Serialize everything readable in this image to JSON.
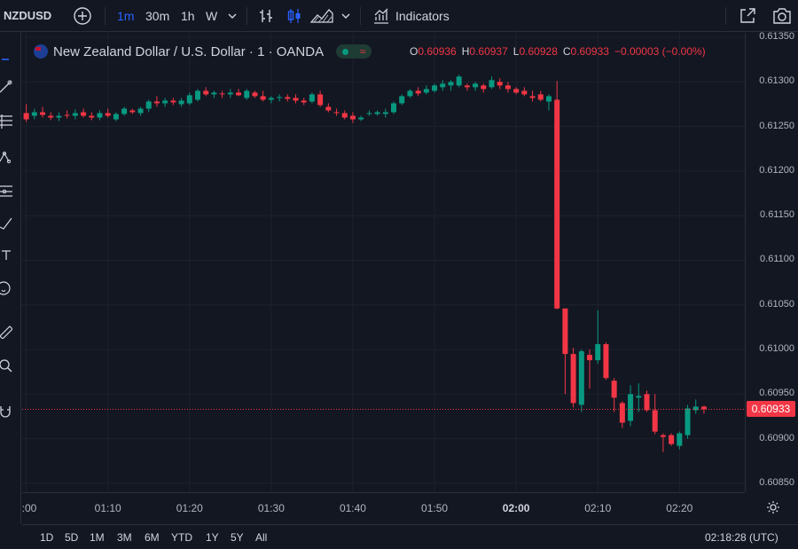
{
  "toolbar": {
    "symbol": "NZDUSD",
    "timeframes": [
      "1m",
      "30m",
      "1h",
      "W"
    ],
    "active_timeframe": "1m",
    "indicators_label": "Indicators"
  },
  "legend": {
    "title": "New Zealand Dollar / U.S. Dollar · 1 · OANDA",
    "open_label": "O",
    "open": "0.60936",
    "high_label": "H",
    "high": "0.60937",
    "low_label": "L",
    "low": "0.60928",
    "close_label": "C",
    "close": "0.60933",
    "change": "−0.00003 (−0.00%)"
  },
  "current_price_label": "0.60933",
  "bottom": {
    "ranges": [
      "1D",
      "5D",
      "1M",
      "3M",
      "6M",
      "YTD",
      "1Y",
      "5Y",
      "All"
    ],
    "clock": "02:18:28 (UTC)"
  },
  "colors": {
    "up": "#089981",
    "down": "#f23645",
    "background": "#131722",
    "grid": "#1e222d"
  },
  "chart_data": {
    "type": "candlestick",
    "title": "New Zealand Dollar / U.S. Dollar · 1 · OANDA",
    "x_tick_labels": [
      ":00",
      "01:10",
      "01:20",
      "01:30",
      "01:40",
      "01:50",
      "02:00",
      "02:10",
      "02:20"
    ],
    "y_tick_labels": [
      "0.61350",
      "0.61300",
      "0.61250",
      "0.61200",
      "0.61150",
      "0.61100",
      "0.61050",
      "0.61000",
      "0.60950",
      "0.60900",
      "0.60850"
    ],
    "ylim": [
      0.6084,
      0.61355
    ],
    "x_minutes_range": [
      -60.5,
      28
    ],
    "last_price": 0.60933,
    "candles": [
      {
        "t": -60,
        "o": 0.61265,
        "h": 0.61275,
        "l": 0.61255,
        "c": 0.61258
      },
      {
        "t": -59,
        "o": 0.61262,
        "h": 0.6127,
        "l": 0.61258,
        "c": 0.61266
      },
      {
        "t": -58,
        "o": 0.61266,
        "h": 0.61272,
        "l": 0.6126,
        "c": 0.61263
      },
      {
        "t": -57,
        "o": 0.61262,
        "h": 0.61266,
        "l": 0.61257,
        "c": 0.6126
      },
      {
        "t": -56,
        "o": 0.6126,
        "h": 0.61266,
        "l": 0.61256,
        "c": 0.61262
      },
      {
        "t": -55,
        "o": 0.61263,
        "h": 0.61268,
        "l": 0.61259,
        "c": 0.61262
      },
      {
        "t": -54,
        "o": 0.61262,
        "h": 0.61269,
        "l": 0.61258,
        "c": 0.61265
      },
      {
        "t": -53,
        "o": 0.61266,
        "h": 0.6127,
        "l": 0.6126,
        "c": 0.61262
      },
      {
        "t": -52,
        "o": 0.61262,
        "h": 0.61266,
        "l": 0.61257,
        "c": 0.6126
      },
      {
        "t": -51,
        "o": 0.6126,
        "h": 0.61268,
        "l": 0.61257,
        "c": 0.61265
      },
      {
        "t": -50,
        "o": 0.61265,
        "h": 0.6127,
        "l": 0.6126,
        "c": 0.61262
      },
      {
        "t": -49,
        "o": 0.61258,
        "h": 0.61266,
        "l": 0.61256,
        "c": 0.61264
      },
      {
        "t": -48,
        "o": 0.61264,
        "h": 0.61272,
        "l": 0.61262,
        "c": 0.6127
      },
      {
        "t": -47,
        "o": 0.61268,
        "h": 0.6127,
        "l": 0.61264,
        "c": 0.61266
      },
      {
        "t": -46,
        "o": 0.61265,
        "h": 0.61272,
        "l": 0.61262,
        "c": 0.6127
      },
      {
        "t": -45,
        "o": 0.6127,
        "h": 0.6128,
        "l": 0.61266,
        "c": 0.61278
      },
      {
        "t": -44,
        "o": 0.61278,
        "h": 0.61284,
        "l": 0.61272,
        "c": 0.61276
      },
      {
        "t": -43,
        "o": 0.61276,
        "h": 0.61282,
        "l": 0.61272,
        "c": 0.61279
      },
      {
        "t": -42,
        "o": 0.61279,
        "h": 0.61282,
        "l": 0.61274,
        "c": 0.61277
      },
      {
        "t": -41,
        "o": 0.61275,
        "h": 0.61282,
        "l": 0.61272,
        "c": 0.61279
      },
      {
        "t": -40,
        "o": 0.61276,
        "h": 0.61288,
        "l": 0.61274,
        "c": 0.61285
      },
      {
        "t": -39,
        "o": 0.6128,
        "h": 0.61292,
        "l": 0.61278,
        "c": 0.6129
      },
      {
        "t": -38,
        "o": 0.6129,
        "h": 0.61294,
        "l": 0.61284,
        "c": 0.61286
      },
      {
        "t": -37,
        "o": 0.61286,
        "h": 0.6129,
        "l": 0.61282,
        "c": 0.61288
      },
      {
        "t": -36,
        "o": 0.61287,
        "h": 0.6129,
        "l": 0.61282,
        "c": 0.61286
      },
      {
        "t": -35,
        "o": 0.61286,
        "h": 0.61292,
        "l": 0.61282,
        "c": 0.61288
      },
      {
        "t": -34,
        "o": 0.61288,
        "h": 0.61292,
        "l": 0.61284,
        "c": 0.61285
      },
      {
        "t": -33,
        "o": 0.61282,
        "h": 0.61292,
        "l": 0.6128,
        "c": 0.6129
      },
      {
        "t": -32,
        "o": 0.61288,
        "h": 0.6129,
        "l": 0.61282,
        "c": 0.61284
      },
      {
        "t": -31,
        "o": 0.61284,
        "h": 0.6129,
        "l": 0.61278,
        "c": 0.6128
      },
      {
        "t": -30,
        "o": 0.6128,
        "h": 0.61284,
        "l": 0.61276,
        "c": 0.61282
      },
      {
        "t": -29,
        "o": 0.61282,
        "h": 0.61286,
        "l": 0.61278,
        "c": 0.61283
      },
      {
        "t": -28,
        "o": 0.61283,
        "h": 0.61286,
        "l": 0.61278,
        "c": 0.61281
      },
      {
        "t": -27,
        "o": 0.61282,
        "h": 0.61286,
        "l": 0.61276,
        "c": 0.61279
      },
      {
        "t": -26,
        "o": 0.61279,
        "h": 0.61282,
        "l": 0.61274,
        "c": 0.61277
      },
      {
        "t": -25,
        "o": 0.61278,
        "h": 0.61288,
        "l": 0.61276,
        "c": 0.61286
      },
      {
        "t": -24,
        "o": 0.61286,
        "h": 0.6129,
        "l": 0.61272,
        "c": 0.61274
      },
      {
        "t": -23,
        "o": 0.61272,
        "h": 0.61276,
        "l": 0.61266,
        "c": 0.61268
      },
      {
        "t": -22,
        "o": 0.61266,
        "h": 0.6127,
        "l": 0.61262,
        "c": 0.61265
      },
      {
        "t": -21,
        "o": 0.61265,
        "h": 0.61268,
        "l": 0.61258,
        "c": 0.6126
      },
      {
        "t": -20,
        "o": 0.61262,
        "h": 0.61266,
        "l": 0.61254,
        "c": 0.61258
      },
      {
        "t": -19,
        "o": 0.61258,
        "h": 0.61262,
        "l": 0.61256,
        "c": 0.6126
      },
      {
        "t": -18,
        "o": 0.61264,
        "h": 0.61268,
        "l": 0.61262,
        "c": 0.61265
      },
      {
        "t": -17,
        "o": 0.61264,
        "h": 0.61268,
        "l": 0.61262,
        "c": 0.61266
      },
      {
        "t": -16,
        "o": 0.61264,
        "h": 0.6127,
        "l": 0.6126,
        "c": 0.61266
      },
      {
        "t": -15,
        "o": 0.61266,
        "h": 0.61278,
        "l": 0.61264,
        "c": 0.61276
      },
      {
        "t": -14,
        "o": 0.61276,
        "h": 0.61286,
        "l": 0.61274,
        "c": 0.61284
      },
      {
        "t": -13,
        "o": 0.61284,
        "h": 0.61292,
        "l": 0.61282,
        "c": 0.6129
      },
      {
        "t": -12,
        "o": 0.6129,
        "h": 0.61294,
        "l": 0.61284,
        "c": 0.61287
      },
      {
        "t": -11,
        "o": 0.61288,
        "h": 0.61296,
        "l": 0.61286,
        "c": 0.61292
      },
      {
        "t": -10,
        "o": 0.6129,
        "h": 0.61298,
        "l": 0.61288,
        "c": 0.61296
      },
      {
        "t": -9,
        "o": 0.61294,
        "h": 0.61302,
        "l": 0.6129,
        "c": 0.61298
      },
      {
        "t": -8,
        "o": 0.61296,
        "h": 0.61302,
        "l": 0.6129,
        "c": 0.613
      },
      {
        "t": -7,
        "o": 0.61296,
        "h": 0.61308,
        "l": 0.61294,
        "c": 0.61306
      },
      {
        "t": -6,
        "o": 0.61296,
        "h": 0.61298,
        "l": 0.6129,
        "c": 0.61294
      },
      {
        "t": -5,
        "o": 0.61294,
        "h": 0.613,
        "l": 0.6129,
        "c": 0.61298
      },
      {
        "t": -4,
        "o": 0.61296,
        "h": 0.61298,
        "l": 0.61288,
        "c": 0.61292
      },
      {
        "t": -3,
        "o": 0.61294,
        "h": 0.61306,
        "l": 0.61292,
        "c": 0.61302
      },
      {
        "t": -2,
        "o": 0.613,
        "h": 0.61304,
        "l": 0.61292,
        "c": 0.61296
      },
      {
        "t": -1,
        "o": 0.61296,
        "h": 0.613,
        "l": 0.61288,
        "c": 0.61292
      },
      {
        "t": 0,
        "o": 0.61292,
        "h": 0.61294,
        "l": 0.61286,
        "c": 0.61288
      },
      {
        "t": 1,
        "o": 0.6129,
        "h": 0.61294,
        "l": 0.61284,
        "c": 0.61286
      },
      {
        "t": 2,
        "o": 0.61284,
        "h": 0.6129,
        "l": 0.61278,
        "c": 0.61282
      },
      {
        "t": 3,
        "o": 0.61286,
        "h": 0.6129,
        "l": 0.61278,
        "c": 0.6128
      },
      {
        "t": 4,
        "o": 0.61278,
        "h": 0.61286,
        "l": 0.61268,
        "c": 0.61284
      },
      {
        "t": 5,
        "o": 0.6128,
        "h": 0.61301,
        "l": 0.61045,
        "c": 0.61046
      },
      {
        "t": 6,
        "o": 0.61046,
        "h": 0.61046,
        "l": 0.6095,
        "c": 0.60995
      },
      {
        "t": 7,
        "o": 0.60995,
        "h": 0.61002,
        "l": 0.60935,
        "c": 0.6094
      },
      {
        "t": 8,
        "o": 0.60938,
        "h": 0.61,
        "l": 0.6093,
        "c": 0.60998
      },
      {
        "t": 9,
        "o": 0.60994,
        "h": 0.61,
        "l": 0.60956,
        "c": 0.60988
      },
      {
        "t": 10,
        "o": 0.60988,
        "h": 0.61044,
        "l": 0.60984,
        "c": 0.61006
      },
      {
        "t": 11,
        "o": 0.61006,
        "h": 0.61008,
        "l": 0.60966,
        "c": 0.60968
      },
      {
        "t": 12,
        "o": 0.60965,
        "h": 0.60968,
        "l": 0.6093,
        "c": 0.60946
      },
      {
        "t": 13,
        "o": 0.6094,
        "h": 0.60942,
        "l": 0.60912,
        "c": 0.60918
      },
      {
        "t": 14,
        "o": 0.6092,
        "h": 0.6096,
        "l": 0.60914,
        "c": 0.6095
      },
      {
        "t": 15,
        "o": 0.60946,
        "h": 0.60962,
        "l": 0.6093,
        "c": 0.60948
      },
      {
        "t": 16,
        "o": 0.6095,
        "h": 0.60954,
        "l": 0.6093,
        "c": 0.60932
      },
      {
        "t": 17,
        "o": 0.60932,
        "h": 0.6095,
        "l": 0.60905,
        "c": 0.60908
      },
      {
        "t": 18,
        "o": 0.60904,
        "h": 0.60906,
        "l": 0.60885,
        "c": 0.60902
      },
      {
        "t": 19,
        "o": 0.60904,
        "h": 0.60906,
        "l": 0.60892,
        "c": 0.60894
      },
      {
        "t": 20,
        "o": 0.60892,
        "h": 0.60908,
        "l": 0.60888,
        "c": 0.60906
      },
      {
        "t": 21,
        "o": 0.60904,
        "h": 0.60938,
        "l": 0.609,
        "c": 0.60934
      },
      {
        "t": 22,
        "o": 0.60932,
        "h": 0.60944,
        "l": 0.60928,
        "c": 0.60936
      },
      {
        "t": 23,
        "o": 0.60936,
        "h": 0.60937,
        "l": 0.60928,
        "c": 0.60933
      }
    ]
  }
}
